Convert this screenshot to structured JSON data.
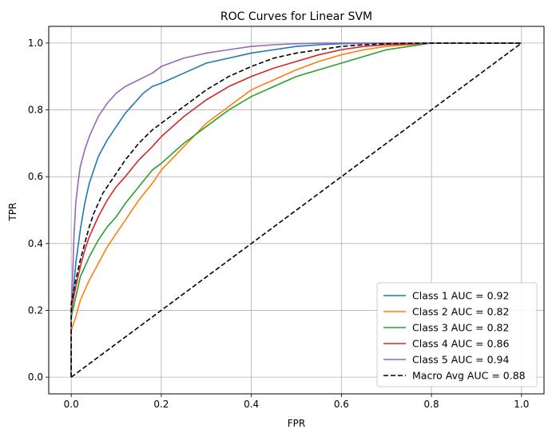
{
  "chart_data": {
    "type": "line",
    "title": "ROC Curves for Linear SVM",
    "xlabel": "FPR",
    "ylabel": "TPR",
    "xlim": [
      -0.05,
      1.05
    ],
    "ylim": [
      -0.05,
      1.05
    ],
    "xticks": [
      0.0,
      0.2,
      0.4,
      0.6,
      0.8,
      1.0
    ],
    "yticks": [
      0.0,
      0.2,
      0.4,
      0.6,
      0.8,
      1.0
    ],
    "xtick_labels": [
      "0.0",
      "0.2",
      "0.4",
      "0.6",
      "0.8",
      "1.0"
    ],
    "ytick_labels": [
      "0.0",
      "0.2",
      "0.4",
      "0.6",
      "0.8",
      "1.0"
    ],
    "grid": true,
    "legend_position": "lower-right",
    "series": [
      {
        "name": "Class 1 AUC = 0.92",
        "color": "#1f77b4",
        "dashed": false,
        "x": [
          0.0,
          0.0,
          0.005,
          0.01,
          0.02,
          0.03,
          0.04,
          0.05,
          0.06,
          0.08,
          0.1,
          0.12,
          0.14,
          0.16,
          0.18,
          0.2,
          0.25,
          0.3,
          0.35,
          0.4,
          0.45,
          0.5,
          0.55,
          0.6,
          0.7,
          0.8,
          0.9,
          1.0
        ],
        "y": [
          0.0,
          0.17,
          0.26,
          0.34,
          0.44,
          0.52,
          0.58,
          0.62,
          0.66,
          0.71,
          0.75,
          0.79,
          0.82,
          0.85,
          0.87,
          0.88,
          0.91,
          0.94,
          0.955,
          0.97,
          0.98,
          0.99,
          0.995,
          0.998,
          1.0,
          1.0,
          1.0,
          1.0
        ]
      },
      {
        "name": "Class 2 AUC = 0.82",
        "color": "#ff7f0e",
        "dashed": false,
        "x": [
          0.0,
          0.0,
          0.01,
          0.02,
          0.04,
          0.06,
          0.08,
          0.1,
          0.12,
          0.15,
          0.18,
          0.2,
          0.25,
          0.3,
          0.35,
          0.4,
          0.45,
          0.5,
          0.55,
          0.6,
          0.65,
          0.7,
          0.75,
          0.8,
          0.9,
          1.0
        ],
        "y": [
          0.0,
          0.14,
          0.18,
          0.23,
          0.29,
          0.34,
          0.39,
          0.43,
          0.47,
          0.53,
          0.58,
          0.62,
          0.69,
          0.76,
          0.81,
          0.86,
          0.89,
          0.92,
          0.945,
          0.965,
          0.98,
          0.99,
          0.995,
          1.0,
          1.0,
          1.0
        ]
      },
      {
        "name": "Class 3 AUC = 0.82",
        "color": "#2ca02c",
        "dashed": false,
        "x": [
          0.0,
          0.0,
          0.01,
          0.02,
          0.04,
          0.06,
          0.08,
          0.1,
          0.12,
          0.15,
          0.18,
          0.2,
          0.25,
          0.3,
          0.35,
          0.4,
          0.45,
          0.5,
          0.55,
          0.6,
          0.65,
          0.7,
          0.75,
          0.8,
          0.9,
          1.0
        ],
        "y": [
          0.0,
          0.18,
          0.24,
          0.3,
          0.36,
          0.41,
          0.45,
          0.48,
          0.52,
          0.57,
          0.62,
          0.64,
          0.7,
          0.75,
          0.8,
          0.84,
          0.87,
          0.9,
          0.92,
          0.94,
          0.96,
          0.98,
          0.99,
          1.0,
          1.0,
          1.0
        ]
      },
      {
        "name": "Class 4 AUC = 0.86",
        "color": "#d62728",
        "dashed": false,
        "x": [
          0.0,
          0.0,
          0.01,
          0.02,
          0.03,
          0.04,
          0.06,
          0.08,
          0.1,
          0.12,
          0.15,
          0.18,
          0.2,
          0.25,
          0.3,
          0.35,
          0.4,
          0.45,
          0.5,
          0.55,
          0.6,
          0.65,
          0.7,
          0.8,
          0.9,
          1.0
        ],
        "y": [
          0.0,
          0.2,
          0.27,
          0.33,
          0.38,
          0.42,
          0.48,
          0.53,
          0.57,
          0.6,
          0.65,
          0.69,
          0.72,
          0.78,
          0.83,
          0.87,
          0.9,
          0.925,
          0.945,
          0.965,
          0.98,
          0.99,
          0.995,
          1.0,
          1.0,
          1.0
        ]
      },
      {
        "name": "Class 5 AUC = 0.94",
        "color": "#9467bd",
        "dashed": false,
        "x": [
          0.0,
          0.0,
          0.003,
          0.006,
          0.01,
          0.015,
          0.02,
          0.03,
          0.04,
          0.05,
          0.06,
          0.08,
          0.1,
          0.12,
          0.15,
          0.18,
          0.2,
          0.25,
          0.3,
          0.35,
          0.4,
          0.45,
          0.5,
          0.55,
          0.6,
          0.8,
          1.0
        ],
        "y": [
          0.0,
          0.2,
          0.3,
          0.42,
          0.52,
          0.58,
          0.63,
          0.68,
          0.72,
          0.75,
          0.78,
          0.82,
          0.85,
          0.87,
          0.89,
          0.91,
          0.93,
          0.955,
          0.97,
          0.98,
          0.99,
          0.995,
          0.998,
          1.0,
          1.0,
          1.0,
          1.0
        ]
      },
      {
        "name": "Macro Avg AUC = 0.88",
        "color": "#000000",
        "dashed": true,
        "x": [
          0.0,
          0.0,
          0.01,
          0.02,
          0.03,
          0.04,
          0.05,
          0.07,
          0.1,
          0.12,
          0.15,
          0.18,
          0.2,
          0.25,
          0.3,
          0.35,
          0.4,
          0.45,
          0.5,
          0.55,
          0.6,
          0.65,
          0.7,
          0.8,
          0.9,
          1.0
        ],
        "y": [
          0.0,
          0.22,
          0.29,
          0.35,
          0.4,
          0.45,
          0.49,
          0.55,
          0.61,
          0.65,
          0.7,
          0.74,
          0.76,
          0.81,
          0.86,
          0.9,
          0.93,
          0.955,
          0.97,
          0.98,
          0.99,
          0.995,
          0.998,
          1.0,
          1.0,
          1.0
        ]
      },
      {
        "name": "",
        "color": "#000000",
        "dashed": true,
        "x": [
          0.0,
          1.0
        ],
        "y": [
          0.0,
          1.0
        ]
      }
    ]
  }
}
